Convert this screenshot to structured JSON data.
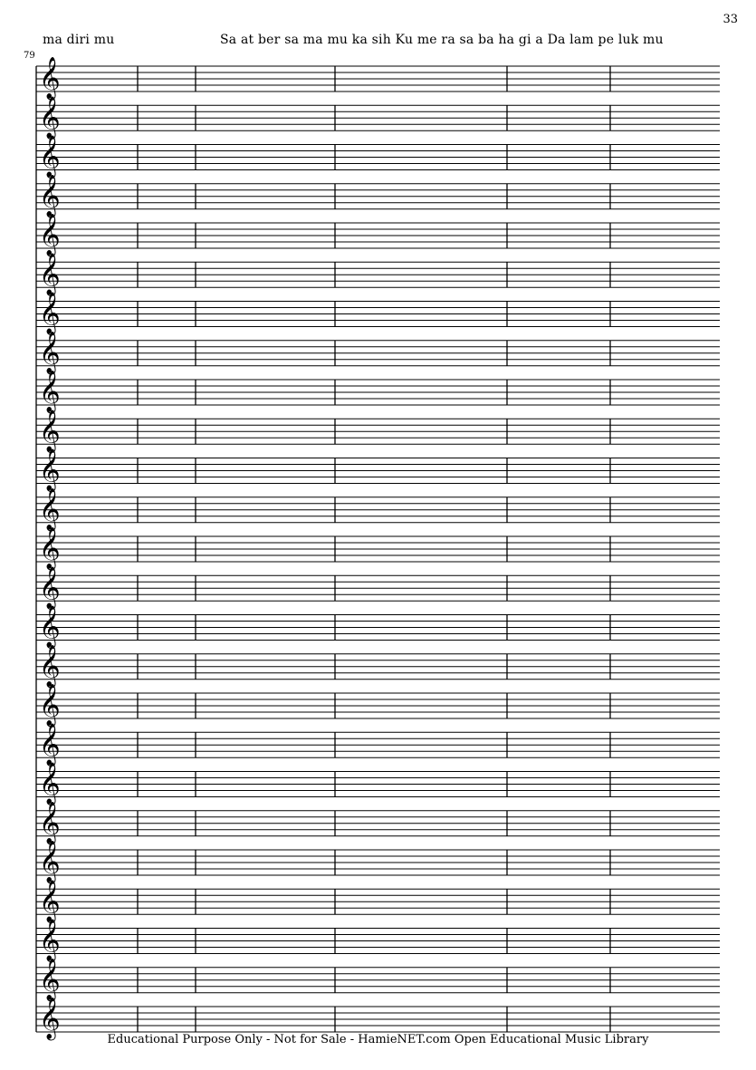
{
  "page_number": "33",
  "measure_number": "79",
  "lyrics": {
    "segment_1": "ma  diri mu",
    "segment_2": "Sa at  ber sa ma mu  ka sih  Ku  me ra sa  ba ha gi a   Da lam  pe luk mu"
  },
  "score": {
    "staff_count": 25,
    "clef": "treble-clef",
    "measures_per_system": 6
  },
  "footer": "Educational Purpose Only - Not for Sale - HamieNET.com Open Educational Music Library"
}
